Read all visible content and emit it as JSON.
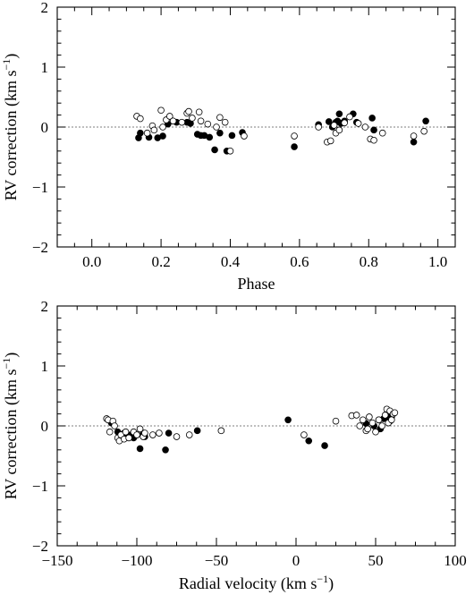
{
  "chart_data": [
    {
      "type": "scatter",
      "xlabel": "Phase",
      "ylabel_main": "RV correction (km s",
      "ylabel_sup": "−1",
      "ylabel_close": ")",
      "xlim": [
        -0.1,
        1.05
      ],
      "ylim": [
        -2,
        2
      ],
      "xticks": [
        0.0,
        0.2,
        0.4,
        0.6,
        0.8,
        1.0
      ],
      "xtick_labels": [
        "0.0",
        "0.2",
        "0.4",
        "0.6",
        "0.8",
        "1.0"
      ],
      "yticks": [
        -2,
        -1,
        0,
        1,
        2
      ],
      "ytick_labels": [
        "−2",
        "−1",
        "0",
        "1",
        "2"
      ],
      "reference_line": 0,
      "series": [
        {
          "style": "filled",
          "x": [
            0.135,
            0.14,
            0.165,
            0.19,
            0.205,
            0.22,
            0.245,
            0.275,
            0.285,
            0.305,
            0.315,
            0.325,
            0.34,
            0.355,
            0.37,
            0.39,
            0.405,
            0.435,
            0.585,
            0.655,
            0.685,
            0.695,
            0.705,
            0.71,
            0.715,
            0.72,
            0.73,
            0.755,
            0.765,
            0.81,
            0.815,
            0.93,
            0.965
          ],
          "y": [
            -0.18,
            -0.1,
            -0.17,
            -0.18,
            -0.15,
            0.05,
            0.08,
            0.08,
            0.06,
            -0.12,
            -0.14,
            -0.14,
            -0.17,
            -0.38,
            -0.1,
            -0.4,
            -0.14,
            -0.09,
            -0.33,
            0.04,
            0.09,
            0.0,
            0.08,
            0.1,
            0.22,
            0.06,
            0.1,
            0.22,
            0.08,
            0.15,
            -0.05,
            -0.25,
            0.1
          ]
        },
        {
          "style": "open",
          "x": [
            0.13,
            0.14,
            0.16,
            0.175,
            0.18,
            0.2,
            0.205,
            0.215,
            0.225,
            0.235,
            0.26,
            0.275,
            0.28,
            0.29,
            0.31,
            0.315,
            0.335,
            0.36,
            0.37,
            0.385,
            0.4,
            0.44,
            0.585,
            0.655,
            0.68,
            0.69,
            0.7,
            0.705,
            0.715,
            0.73,
            0.745,
            0.77,
            0.79,
            0.805,
            0.815,
            0.84,
            0.93,
            0.96
          ],
          "y": [
            0.18,
            0.14,
            -0.1,
            0.02,
            -0.05,
            0.28,
            0.0,
            0.12,
            0.18,
            0.1,
            0.08,
            0.23,
            0.26,
            0.15,
            0.25,
            0.1,
            0.05,
            0.0,
            0.16,
            0.08,
            -0.4,
            -0.15,
            -0.15,
            0.0,
            -0.25,
            -0.23,
            0.03,
            -0.1,
            -0.05,
            0.07,
            0.17,
            0.06,
            0.0,
            -0.2,
            -0.22,
            -0.1,
            -0.15,
            -0.07
          ]
        }
      ]
    },
    {
      "type": "scatter",
      "xlabel_main": "Radial velocity (km s",
      "xlabel_sup": "−1",
      "xlabel_close": ")",
      "ylabel_main": "RV correction (km s",
      "ylabel_sup": "−1",
      "ylabel_close": ")",
      "xlim": [
        -150,
        100
      ],
      "ylim": [
        -2,
        2
      ],
      "xticks": [
        -150,
        -100,
        -50,
        0,
        50,
        100
      ],
      "xtick_labels": [
        "−150",
        "−100",
        "−50",
        "0",
        "50",
        "100"
      ],
      "yticks": [
        -2,
        -1,
        0,
        1,
        2
      ],
      "ytick_labels": [
        "−2",
        "−1",
        "0",
        "1",
        "2"
      ],
      "reference_line": 0,
      "series": [
        {
          "style": "filled",
          "x": [
            -116,
            -112,
            -110,
            -108,
            -106,
            -104,
            -102,
            -100,
            -98,
            -96,
            -95,
            -82,
            -80,
            -62,
            -5,
            8,
            18,
            44,
            49,
            52,
            53,
            55,
            56,
            57,
            58,
            59,
            60
          ],
          "y": [
            0.05,
            -0.1,
            -0.15,
            -0.12,
            -0.18,
            -0.15,
            -0.2,
            -0.15,
            -0.38,
            -0.12,
            -0.18,
            -0.4,
            -0.12,
            -0.08,
            0.1,
            -0.25,
            -0.33,
            0.04,
            0.0,
            0.1,
            -0.05,
            0.12,
            0.15,
            0.2,
            0.25,
            0.08,
            0.15
          ]
        },
        {
          "style": "open",
          "x": [
            -119,
            -118,
            -117,
            -115,
            -114,
            -112,
            -111,
            -110,
            -108,
            -107,
            -105,
            -102,
            -100,
            -98,
            -96,
            -95,
            -90,
            -86,
            -75,
            -67,
            -47,
            5,
            25,
            35,
            38,
            40,
            42,
            44,
            45,
            46,
            48,
            50,
            52,
            54,
            56,
            57,
            58,
            59,
            60,
            61,
            62
          ],
          "y": [
            0.12,
            0.1,
            -0.1,
            0.08,
            0.0,
            -0.2,
            -0.25,
            -0.15,
            -0.22,
            -0.1,
            -0.2,
            -0.1,
            -0.15,
            -0.05,
            -0.18,
            -0.12,
            -0.15,
            -0.12,
            -0.18,
            -0.15,
            -0.08,
            -0.15,
            0.08,
            0.17,
            0.18,
            0.0,
            0.1,
            -0.08,
            -0.05,
            0.15,
            0.05,
            -0.1,
            0.1,
            0.0,
            0.18,
            0.28,
            0.05,
            0.25,
            0.1,
            0.2,
            0.22
          ]
        }
      ]
    }
  ]
}
